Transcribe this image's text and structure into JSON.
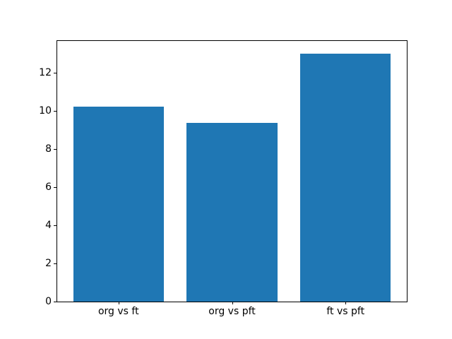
{
  "chart_data": {
    "type": "bar",
    "title": "",
    "xlabel": "",
    "ylabel": "",
    "categories": [
      "org vs ft",
      "org vs pft",
      "ft vs pft"
    ],
    "values": [
      10.2,
      9.35,
      13.0
    ],
    "yticks": [
      0,
      2,
      4,
      6,
      8,
      10,
      12
    ],
    "ylim": [
      0,
      13.65
    ],
    "xlim": [
      -0.54,
      2.54
    ],
    "bar_width": 0.8,
    "bar_color": "#1f77b4",
    "axis_color": "#000000",
    "background_color": "#ffffff",
    "grid": false,
    "legend": "none"
  }
}
